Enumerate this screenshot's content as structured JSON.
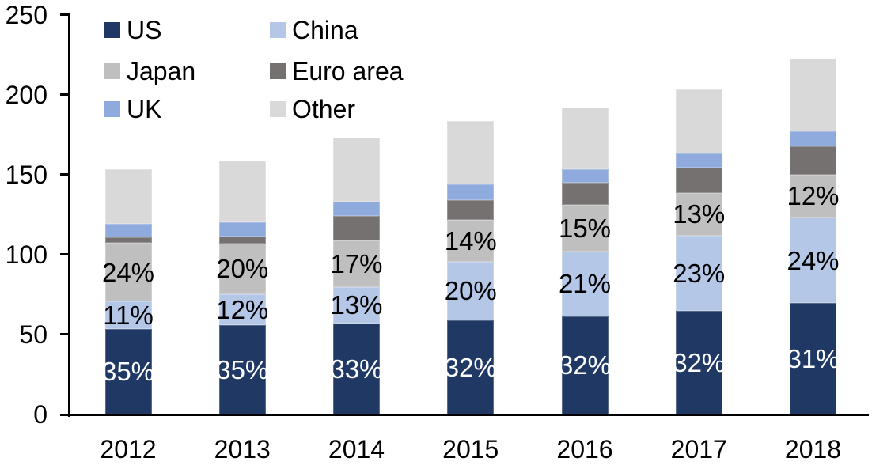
{
  "chart_data": {
    "type": "bar",
    "stacked": true,
    "categories": [
      "2012",
      "2013",
      "2014",
      "2015",
      "2016",
      "2017",
      "2018"
    ],
    "series": [
      {
        "name": "US",
        "color": "#1F3864",
        "values": [
          53.5,
          56,
          57,
          59,
          61.5,
          65,
          69.5
        ],
        "labels": [
          "35%",
          "35%",
          "33%",
          "32%",
          "32%",
          "32%",
          "31%"
        ],
        "label_color": "#FFFFFF"
      },
      {
        "name": "China",
        "color": "#B4C7E7",
        "values": [
          17,
          19,
          22.5,
          36.5,
          40.5,
          47,
          53.5
        ],
        "labels": [
          "11%",
          "12%",
          "13%",
          "20%",
          "21%",
          "23%",
          "24%"
        ],
        "label_color": "#000000"
      },
      {
        "name": "Japan",
        "color": "#BFBFBF",
        "values": [
          37,
          32,
          29.5,
          26,
          29,
          26.5,
          27
        ],
        "labels": [
          "24%",
          "20%",
          "17%",
          "14%",
          "15%",
          "13%",
          "12%"
        ],
        "label_color": "#000000"
      },
      {
        "name": "Euro area",
        "color": "#767171",
        "values": [
          3.5,
          4.5,
          15,
          12.5,
          14,
          16,
          17.5
        ],
        "labels": null,
        "label_color": "#000000"
      },
      {
        "name": "UK",
        "color": "#8FAADC",
        "values": [
          8,
          8.5,
          9,
          10,
          8.5,
          8.5,
          9.5
        ],
        "labels": null,
        "label_color": "#000000"
      },
      {
        "name": "Other",
        "color": "#D9D9D9",
        "values": [
          34.5,
          39,
          40,
          39.5,
          38.5,
          40.5,
          45.5
        ],
        "labels": null,
        "label_color": "#000000"
      }
    ],
    "totals": [
      153,
      160,
      173,
      184,
      192,
      204,
      223
    ],
    "y_axis": {
      "min": 0,
      "max": 250,
      "ticks": [
        0,
        50,
        100,
        150,
        200,
        250
      ]
    },
    "x_axis": {
      "label": ""
    },
    "legend": {
      "position": "top-left",
      "rows": [
        [
          "US",
          "China"
        ],
        [
          "Japan",
          "Euro area"
        ],
        [
          "UK",
          "Other"
        ]
      ]
    },
    "grid": false,
    "axis_color": "#000000",
    "text_color": "#000000",
    "background_color": "#FFFFFF"
  }
}
